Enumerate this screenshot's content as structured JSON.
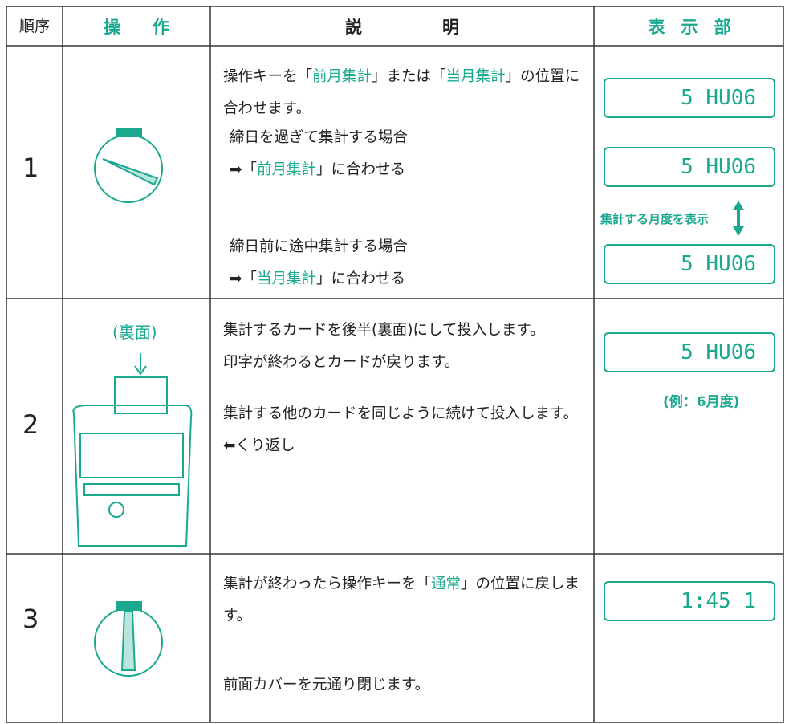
{
  "header": {
    "order": "順序",
    "operation": "操作",
    "description": "説明",
    "display": "表示部"
  },
  "rows": [
    {
      "step": "1",
      "paragraphs": [
        [
          "操作キーを「",
          "前月集計",
          "」または「",
          "当月集計",
          "」の位置に合わせます。"
        ]
      ],
      "cases": [
        {
          "condition": "締日を過ぎて集計する場合",
          "action": [
            "➡「",
            "前月集計",
            "」に合わせる"
          ]
        },
        {
          "condition": "締日前に途中集計する場合",
          "action": [
            "➡「",
            "当月集計",
            "」に合わせる"
          ]
        }
      ],
      "displays": [
        "5 HU06",
        "5 HU06",
        "5 HU06"
      ],
      "display_note": "集計する月度を表示"
    },
    {
      "step": "2",
      "image_label": "(裏面)",
      "paragraphs": [
        [
          "集計するカードを後半(裏面)にして投入します。"
        ],
        [
          "印字が終わるとカードが戻ります。"
        ],
        [
          "集計する他のカードを同じように続けて投入します。⬅くり返し"
        ]
      ],
      "displays": [
        "5 HU06"
      ],
      "display_note": "(例：6月度)"
    },
    {
      "step": "3",
      "paragraphs": [
        [
          "集計が終わったら操作キーを「",
          "通常",
          "」の位置に戻します。"
        ],
        [
          "前面カバーを元通り閉じます。"
        ]
      ],
      "displays": [
        "1:45 1"
      ]
    }
  ]
}
